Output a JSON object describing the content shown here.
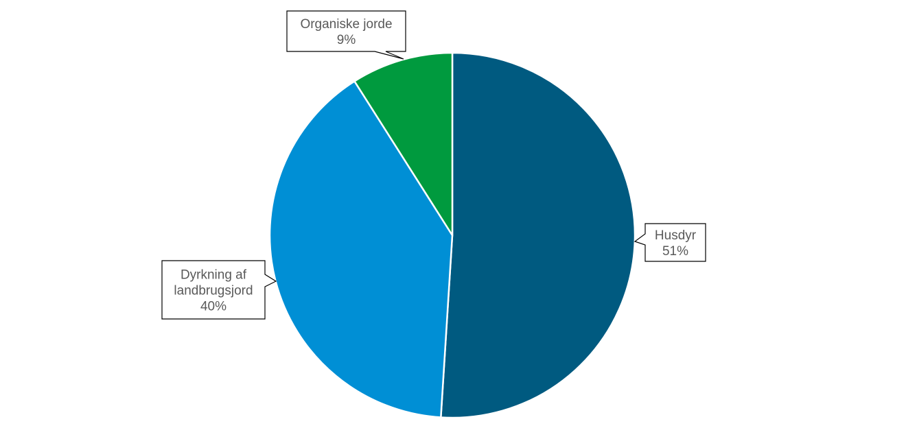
{
  "chart_data": {
    "type": "pie",
    "slices": [
      {
        "name": "Husdyr",
        "value": 51,
        "label_lines": [
          "Husdyr"
        ],
        "pct_label": "51%",
        "color": "#005A80"
      },
      {
        "name": "Dyrkning af landbrugsjord",
        "value": 40,
        "label_lines": [
          "Dyrkning af",
          "landbrugsjord"
        ],
        "pct_label": "40%",
        "color": "#008FD5"
      },
      {
        "name": "Organiske jorde",
        "value": 9,
        "label_lines": [
          "Organiske jorde"
        ],
        "pct_label": "9%",
        "color": "#009A3E"
      }
    ],
    "start_angle": "12 o'clock",
    "direction": "clockwise",
    "legend": "none",
    "label_style": "callout"
  }
}
